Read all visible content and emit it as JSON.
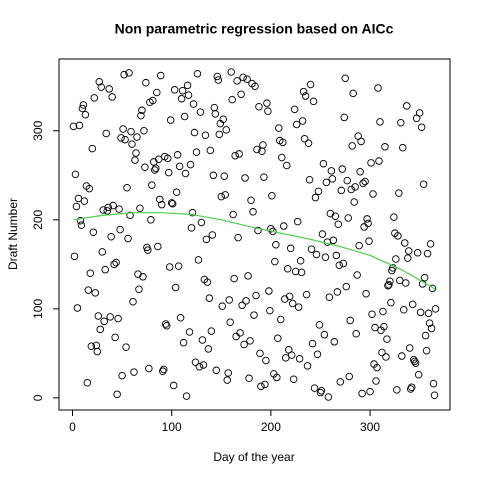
{
  "chart_data": {
    "type": "scatter",
    "title": "Non parametric regression based on AICc",
    "xlabel": "Day of the year",
    "ylabel": "Draft Number",
    "xlim": [
      -13.6,
      380.6
    ],
    "ylim": [
      -13.6,
      380.6
    ],
    "xticks": [
      0,
      100,
      200,
      300
    ],
    "yticks": [
      0,
      100,
      200,
      300
    ],
    "point_color": "#000000",
    "x": [
      1,
      2,
      3,
      4,
      5,
      6,
      7,
      8,
      9,
      10,
      11,
      12,
      13,
      14,
      15,
      16,
      17,
      18,
      19,
      20,
      21,
      22,
      23,
      24,
      25,
      26,
      27,
      28,
      29,
      30,
      31,
      32,
      33,
      34,
      35,
      36,
      37,
      38,
      39,
      40,
      41,
      42,
      43,
      44,
      45,
      46,
      47,
      48,
      49,
      50,
      51,
      52,
      53,
      54,
      55,
      56,
      57,
      58,
      59,
      60,
      61,
      62,
      63,
      64,
      65,
      66,
      67,
      68,
      69,
      70,
      71,
      72,
      73,
      74,
      75,
      76,
      77,
      78,
      79,
      80,
      81,
      82,
      83,
      84,
      85,
      86,
      87,
      88,
      89,
      90,
      91,
      92,
      93,
      94,
      95,
      96,
      97,
      98,
      99,
      100,
      101,
      102,
      103,
      104,
      105,
      106,
      107,
      108,
      109,
      110,
      111,
      112,
      113,
      114,
      115,
      116,
      117,
      118,
      119,
      120,
      121,
      122,
      123,
      124,
      125,
      126,
      127,
      128,
      129,
      130,
      131,
      132,
      133,
      134,
      135,
      136,
      137,
      138,
      139,
      140,
      141,
      142,
      143,
      144,
      145,
      146,
      147,
      148,
      149,
      150,
      151,
      152,
      153,
      154,
      155,
      156,
      157,
      158,
      159,
      160,
      161,
      162,
      163,
      164,
      165,
      166,
      167,
      168,
      169,
      170,
      171,
      172,
      173,
      174,
      175,
      176,
      177,
      178,
      179,
      180,
      181,
      182,
      183,
      184,
      185,
      186,
      187,
      188,
      189,
      190,
      191,
      192,
      193,
      194,
      195,
      196,
      197,
      198,
      199,
      200,
      201,
      202,
      203,
      204,
      205,
      206,
      207,
      208,
      209,
      210,
      211,
      212,
      213,
      214,
      215,
      216,
      217,
      218,
      219,
      220,
      221,
      222,
      223,
      224,
      225,
      226,
      227,
      228,
      229,
      230,
      231,
      232,
      233,
      234,
      235,
      236,
      237,
      238,
      239,
      240,
      241,
      242,
      243,
      244,
      245,
      246,
      247,
      248,
      249,
      250,
      251,
      252,
      253,
      254,
      255,
      256,
      257,
      258,
      259,
      260,
      261,
      262,
      263,
      264,
      265,
      266,
      267,
      268,
      269,
      270,
      271,
      272,
      273,
      274,
      275,
      276,
      277,
      278,
      279,
      280,
      281,
      282,
      283,
      284,
      285,
      286,
      287,
      288,
      289,
      290,
      291,
      292,
      293,
      294,
      295,
      296,
      297,
      298,
      299,
      300,
      301,
      302,
      303,
      304,
      305,
      306,
      307,
      308,
      309,
      310,
      311,
      312,
      313,
      314,
      315,
      316,
      317,
      318,
      319,
      320,
      321,
      322,
      323,
      324,
      325,
      326,
      327,
      328,
      329,
      330,
      331,
      332,
      333,
      334,
      335,
      336,
      337,
      338,
      339,
      340,
      341,
      342,
      343,
      344,
      345,
      346,
      347,
      348,
      349,
      350,
      351,
      352,
      353,
      354,
      355,
      356,
      357,
      358,
      359,
      360,
      361,
      362,
      363,
      364,
      365,
      366
    ],
    "values": [
      305,
      159,
      251,
      215,
      101,
      224,
      306,
      199,
      194,
      325,
      329,
      221,
      318,
      238,
      17,
      121,
      235,
      140,
      58,
      280,
      186,
      337,
      118,
      59,
      52,
      92,
      355,
      77,
      349,
      164,
      211,
      86,
      144,
      297,
      210,
      214,
      347,
      91,
      181,
      338,
      216,
      150,
      68,
      152,
      4,
      89,
      212,
      189,
      292,
      25,
      302,
      363,
      290,
      57,
      236,
      179,
      365,
      205,
      299,
      285,
      108,
      29,
      267,
      275,
      293,
      139,
      122,
      213,
      317,
      323,
      136,
      300,
      259,
      354,
      169,
      166,
      33,
      332,
      200,
      239,
      334,
      265,
      256,
      258,
      343,
      170,
      268,
      223,
      362,
      217,
      30,
      32,
      271,
      83,
      81,
      269,
      253,
      147,
      312,
      219,
      218,
      14,
      346,
      124,
      231,
      273,
      148,
      260,
      90,
      336,
      345,
      62,
      316,
      252,
      2,
      351,
      340,
      74,
      262,
      191,
      208,
      330,
      298,
      40,
      276,
      364,
      155,
      35,
      321,
      197,
      65,
      37,
      133,
      295,
      178,
      130,
      55,
      112,
      278,
      75,
      183,
      250,
      326,
      319,
      31,
      361,
      357,
      296,
      308,
      226,
      103,
      313,
      249,
      228,
      301,
      20,
      28,
      110,
      85,
      366,
      335,
      206,
      134,
      272,
      69,
      356,
      180,
      274,
      73,
      341,
      104,
      360,
      60,
      247,
      109,
      358,
      137,
      22,
      64,
      222,
      353,
      209,
      93,
      350,
      115,
      279,
      188,
      327,
      50,
      13,
      277,
      284,
      248,
      15,
      42,
      331,
      322,
      120,
      98,
      190,
      227,
      187,
      27,
      153,
      172,
      23,
      67,
      303,
      289,
      88,
      270,
      287,
      193,
      111,
      45,
      261,
      145,
      54,
      114,
      168,
      48,
      106,
      21,
      324,
      142,
      307,
      198,
      102,
      44,
      154,
      141,
      311,
      344,
      291,
      339,
      116,
      36,
      286,
      245,
      352,
      167,
      61,
      333,
      11,
      225,
      161,
      49,
      232,
      82,
      6,
      8,
      184,
      263,
      71,
      158,
      242,
      175,
      1,
      113,
      207,
      255,
      246,
      177,
      63,
      204,
      160,
      119,
      195,
      149,
      18,
      233,
      257,
      151,
      315,
      359,
      125,
      244,
      202,
      24,
      87,
      234,
      283,
      342,
      220,
      237,
      72,
      138,
      294,
      171,
      254,
      288,
      5,
      241,
      192,
      243,
      117,
      201,
      196,
      176,
      7,
      264,
      94,
      229,
      38,
      79,
      19,
      34,
      348,
      266,
      310,
      76,
      51,
      97,
      80,
      282,
      46,
      66,
      126,
      127,
      131,
      107,
      143,
      146,
      203,
      185,
      156,
      9,
      182,
      230,
      132,
      309,
      47,
      281,
      99,
      174,
      129,
      328,
      157,
      165,
      56,
      10,
      12,
      105,
      43,
      41,
      39,
      314,
      163,
      26,
      320,
      96,
      304,
      128,
      240,
      135,
      70,
      53,
      162,
      95,
      84,
      173,
      78,
      123,
      16,
      3,
      100
    ],
    "fit": {
      "color": "#4cd04c",
      "x": [
        1,
        30,
        60,
        90,
        120,
        150,
        180,
        210,
        240,
        270,
        300,
        330,
        366
      ],
      "values": [
        200,
        205,
        208,
        208,
        206,
        200,
        192,
        185,
        178,
        170,
        160,
        145,
        122
      ]
    }
  }
}
